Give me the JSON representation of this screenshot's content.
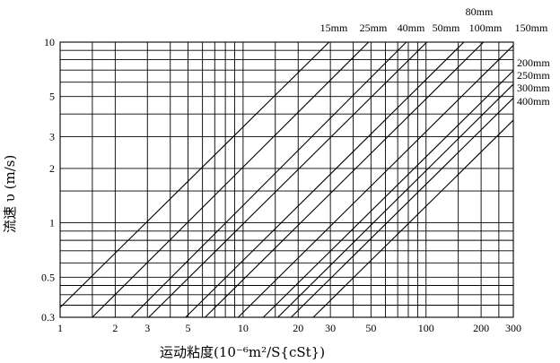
{
  "chart_data": {
    "type": "line",
    "title": "",
    "xlabel": "运动粘度(10⁻⁶m²/S{cSt})",
    "ylabel": "流速 υ (m/s)",
    "x_scale": "log",
    "y_scale": "log",
    "xlim": [
      1,
      300
    ],
    "ylim": [
      0.3,
      10
    ],
    "grid": true,
    "x_ticks": [
      1,
      2,
      3,
      5,
      10,
      20,
      30,
      50,
      100,
      200,
      300
    ],
    "y_ticks": [
      0.3,
      0.5,
      1,
      2,
      3,
      5,
      10
    ],
    "x_minor_grid": [
      1.5,
      2,
      3,
      4,
      5,
      6,
      7,
      8,
      9,
      10,
      15,
      20,
      30,
      40,
      50,
      60,
      70,
      80,
      90,
      100,
      150,
      200,
      250,
      300
    ],
    "y_minor_grid": [
      0.35,
      0.4,
      0.45,
      0.5,
      0.6,
      0.7,
      0.8,
      0.9,
      1,
      1.5,
      2,
      3,
      4,
      5,
      6,
      7,
      8,
      9,
      10
    ],
    "series": [
      {
        "name": "15mm",
        "x": [
          1,
          29.5
        ],
        "y": [
          0.34,
          10
        ]
      },
      {
        "name": "25mm",
        "x": [
          1.5,
          48.5
        ],
        "y": [
          0.3,
          10
        ]
      },
      {
        "name": "40mm",
        "x": [
          2.45,
          78
        ],
        "y": [
          0.3,
          10
        ]
      },
      {
        "name": "50mm",
        "x": [
          3.05,
          101
        ],
        "y": [
          0.3,
          10
        ]
      },
      {
        "name": "80mm",
        "x": [
          4.85,
          161
        ],
        "y": [
          0.3,
          10
        ]
      },
      {
        "name": "100mm",
        "x": [
          6.2,
          206
        ],
        "y": [
          0.3,
          10
        ]
      },
      {
        "name": "150mm",
        "x": [
          9.4,
          300
        ],
        "y": [
          0.3,
          9.6
        ]
      },
      {
        "name": "200mm",
        "x": [
          12.9,
          300
        ],
        "y": [
          0.3,
          6.95
        ]
      },
      {
        "name": "250mm",
        "x": [
          15.5,
          300
        ],
        "y": [
          0.3,
          5.85
        ]
      },
      {
        "name": "300mm",
        "x": [
          18.3,
          300
        ],
        "y": [
          0.3,
          4.9
        ]
      },
      {
        "name": "400mm",
        "x": [
          24.2,
          300
        ],
        "y": [
          0.3,
          3.7
        ]
      }
    ]
  }
}
